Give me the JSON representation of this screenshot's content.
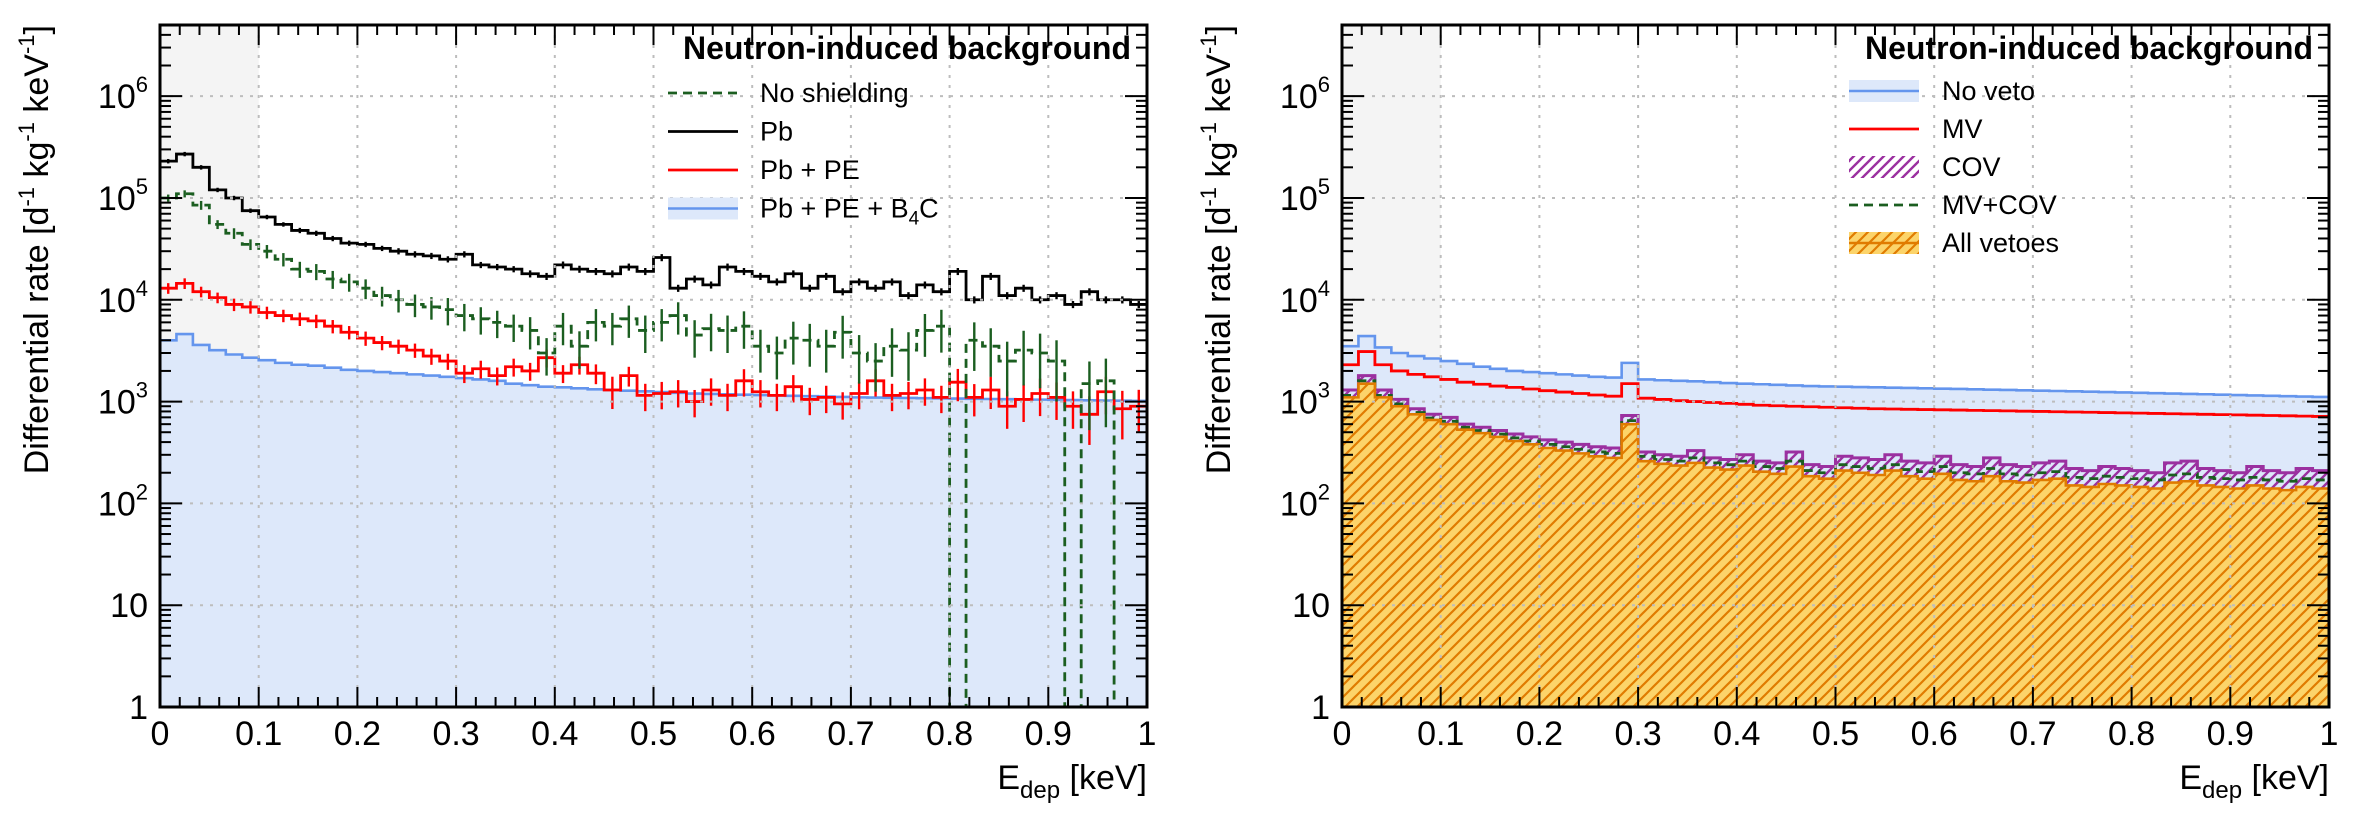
{
  "chart_data": [
    {
      "type": "step-histogram",
      "panel": "left",
      "y_scale": "log",
      "xlim": [
        0,
        1
      ],
      "ylim": [
        1,
        5000000
      ],
      "x_ticks": [
        "0",
        "0.1",
        "0.2",
        "0.3",
        "0.4",
        "0.5",
        "0.6",
        "0.7",
        "0.8",
        "0.9",
        "1"
      ],
      "y_tick_values": [
        1,
        10,
        100,
        1000,
        10000,
        100000,
        1000000
      ],
      "y_tick_labels": [
        {
          "base": "1",
          "exp": ""
        },
        {
          "base": "10",
          "exp": ""
        },
        {
          "base": "10",
          "exp": "2"
        },
        {
          "base": "10",
          "exp": "3"
        },
        {
          "base": "10",
          "exp": "4"
        },
        {
          "base": "10",
          "exp": "5"
        },
        {
          "base": "10",
          "exp": "6"
        }
      ],
      "xlabel": {
        "main": "E",
        "sub": "dep",
        "rest": " [keV]"
      },
      "ylabel": {
        "p1": "Differential rate [d",
        "s1": "-1",
        "p2": " kg",
        "s2": "-1",
        "p3": " keV",
        "s3": "-1",
        "p4": "]"
      },
      "grid": true,
      "shaded_threshold": [
        0,
        0.1
      ],
      "legend_title": "Neutron-induced background",
      "legend_position": "top-right",
      "bins": 60,
      "series": [
        {
          "name": "Pb + PE + B4C",
          "label_main": "Pb + PE + B",
          "label_sub": "4",
          "label_tail": "C",
          "style": "filled",
          "color": "#6495ED",
          "fill": "#DDE8FA",
          "values": [
            4000,
            4600,
            3600,
            3200,
            2900,
            2700,
            2550,
            2400,
            2300,
            2250,
            2150,
            2050,
            2000,
            1950,
            1900,
            1850,
            1800,
            1750,
            1700,
            1650,
            1600,
            1500,
            1450,
            1400,
            1380,
            1350,
            1320,
            1300,
            1280,
            1260,
            1240,
            1220,
            1200,
            1190,
            1180,
            1170,
            1160,
            1150,
            1140,
            1130,
            1120,
            1110,
            1100,
            1095,
            1090,
            1085,
            1080,
            1075,
            1070,
            1065,
            1060,
            1055,
            1050,
            1045,
            1040,
            1035,
            1030,
            1025,
            1020,
            1015
          ]
        },
        {
          "name": "Pb + PE",
          "style": "step-errorbars",
          "color": "#FF0000",
          "values": [
            13000,
            14500,
            12000,
            10500,
            9000,
            8500,
            7500,
            7000,
            6500,
            6200,
            5500,
            4800,
            4200,
            3800,
            3500,
            3200,
            2800,
            2500,
            1900,
            2100,
            1800,
            2200,
            2000,
            2700,
            1900,
            2300,
            1900,
            1300,
            1800,
            1150,
            1200,
            1250,
            1000,
            1300,
            1150,
            1600,
            1250,
            1150,
            1400,
            1050,
            1100,
            950,
            1200,
            1600,
            1150,
            1200,
            1300,
            1100,
            1550,
            1100,
            1300,
            900,
            1050,
            1200,
            1100,
            900,
            750,
            1250,
            850,
            900
          ],
          "errors_rel": [
            0.12,
            0.12,
            0.12,
            0.12,
            0.14,
            0.14,
            0.14,
            0.14,
            0.15,
            0.15,
            0.15,
            0.15,
            0.16,
            0.16,
            0.16,
            0.16,
            0.18,
            0.18,
            0.2,
            0.2,
            0.2,
            0.2,
            0.2,
            0.2,
            0.2,
            0.2,
            0.22,
            0.35,
            0.22,
            0.3,
            0.3,
            0.3,
            0.3,
            0.3,
            0.3,
            0.3,
            0.3,
            0.3,
            0.3,
            0.3,
            0.3,
            0.3,
            0.3,
            0.3,
            0.3,
            0.3,
            0.3,
            0.3,
            0.35,
            0.35,
            0.35,
            0.4,
            0.4,
            0.4,
            0.4,
            0.4,
            0.5,
            0.4,
            0.5,
            0.45
          ]
        },
        {
          "name": "Pb",
          "style": "step",
          "color": "#000000",
          "values": [
            230000,
            270000,
            200000,
            120000,
            100000,
            75000,
            65000,
            55000,
            48000,
            45000,
            40000,
            36000,
            35000,
            32000,
            30000,
            28000,
            27000,
            25000,
            28000,
            22000,
            21000,
            20000,
            18000,
            17000,
            22000,
            20000,
            19000,
            18000,
            21000,
            19000,
            26000,
            13000,
            16000,
            14000,
            21000,
            19000,
            17000,
            15000,
            18000,
            13000,
            17000,
            12000,
            15000,
            13000,
            15000,
            11000,
            14000,
            12000,
            19000,
            10000,
            17000,
            11000,
            13000,
            10000,
            11000,
            9000,
            12000,
            10000,
            10000,
            9000
          ],
          "errors_rel": [
            0.05,
            0.05,
            0.05,
            0.05,
            0.05,
            0.05,
            0.05,
            0.05,
            0.06,
            0.06,
            0.06,
            0.06,
            0.06,
            0.06,
            0.07,
            0.07,
            0.07,
            0.07,
            0.07,
            0.07,
            0.07,
            0.07,
            0.08,
            0.08,
            0.08,
            0.08,
            0.08,
            0.08,
            0.08,
            0.08,
            0.08,
            0.08,
            0.08,
            0.08,
            0.08,
            0.08,
            0.08,
            0.08,
            0.08,
            0.08,
            0.08,
            0.08,
            0.08,
            0.08,
            0.08,
            0.08,
            0.08,
            0.08,
            0.08,
            0.08,
            0.08,
            0.08,
            0.08,
            0.08,
            0.08,
            0.08,
            0.08,
            0.08,
            0.08,
            0.08
          ]
        },
        {
          "name": "No shielding",
          "style": "dashed-step-errorbars",
          "color": "#1B5E20",
          "values": [
            100000,
            110000,
            85000,
            55000,
            45000,
            35000,
            30000,
            25000,
            20000,
            19000,
            16000,
            15000,
            13000,
            11000,
            10000,
            9000,
            8500,
            8000,
            7000,
            6500,
            6000,
            5500,
            5000,
            3000,
            5500,
            3500,
            6000,
            5500,
            6500,
            5000,
            6000,
            7000,
            4500,
            5200,
            5000,
            5500,
            3500,
            3000,
            4200,
            4000,
            3500,
            4800,
            3000,
            2500,
            3500,
            3200,
            5000,
            5500,
            6000,
            4000,
            3500,
            2500,
            3200,
            3000,
            2500,
            2000,
            1500,
            1600,
            2200,
            1800
          ],
          "zero_bins": [
            48,
            55,
            58,
            59
          ],
          "errors_rel": [
            0.08,
            0.08,
            0.1,
            0.1,
            0.12,
            0.12,
            0.15,
            0.15,
            0.18,
            0.18,
            0.2,
            0.2,
            0.22,
            0.22,
            0.25,
            0.25,
            0.25,
            0.3,
            0.3,
            0.3,
            0.3,
            0.3,
            0.35,
            0.4,
            0.35,
            0.4,
            0.35,
            0.35,
            0.35,
            0.4,
            0.35,
            0.35,
            0.4,
            0.4,
            0.4,
            0.4,
            0.45,
            0.45,
            0.45,
            0.45,
            0.45,
            0.45,
            0.5,
            0.5,
            0.5,
            0.5,
            0.45,
            0.45,
            0.45,
            0.5,
            0.5,
            0.55,
            0.55,
            0.55,
            0.6,
            0.6,
            0.65,
            0.65,
            0.6,
            0.6
          ]
        }
      ]
    },
    {
      "type": "step-histogram",
      "panel": "right",
      "y_scale": "log",
      "xlim": [
        0,
        1
      ],
      "ylim": [
        1,
        5000000
      ],
      "x_ticks": [
        "0",
        "0.1",
        "0.2",
        "0.3",
        "0.4",
        "0.5",
        "0.6",
        "0.7",
        "0.8",
        "0.9",
        "1"
      ],
      "y_tick_values": [
        1,
        10,
        100,
        1000,
        10000,
        100000,
        1000000
      ],
      "y_tick_labels": [
        {
          "base": "1",
          "exp": ""
        },
        {
          "base": "10",
          "exp": ""
        },
        {
          "base": "10",
          "exp": "2"
        },
        {
          "base": "10",
          "exp": "3"
        },
        {
          "base": "10",
          "exp": "4"
        },
        {
          "base": "10",
          "exp": "5"
        },
        {
          "base": "10",
          "exp": "6"
        }
      ],
      "xlabel": {
        "main": "E",
        "sub": "dep",
        "rest": " [keV]"
      },
      "ylabel": {
        "p1": "Differential rate [d",
        "s1": "-1",
        "p2": " kg",
        "s2": "-1",
        "p3": " keV",
        "s3": "-1",
        "p4": "]"
      },
      "grid": true,
      "shaded_threshold": [
        0,
        0.1
      ],
      "legend_title": "Neutron-induced background",
      "legend_position": "top-right",
      "bins": 60,
      "series": [
        {
          "name": "No veto",
          "style": "filled",
          "color": "#6495ED",
          "fill": "#DDE8FA",
          "values": [
            3500,
            4400,
            3400,
            3000,
            2800,
            2650,
            2500,
            2350,
            2200,
            2100,
            2000,
            1950,
            1900,
            1850,
            1800,
            1750,
            1720,
            2400,
            1650,
            1620,
            1600,
            1580,
            1550,
            1520,
            1500,
            1480,
            1460,
            1440,
            1420,
            1410,
            1400,
            1390,
            1380,
            1370,
            1360,
            1350,
            1340,
            1330,
            1320,
            1310,
            1300,
            1290,
            1280,
            1270,
            1260,
            1250,
            1240,
            1230,
            1220,
            1210,
            1200,
            1190,
            1180,
            1170,
            1160,
            1150,
            1140,
            1130,
            1120,
            1110
          ]
        },
        {
          "name": "MV",
          "style": "step",
          "color": "#FF0000",
          "values": [
            2300,
            3100,
            2300,
            2000,
            1850,
            1750,
            1650,
            1550,
            1480,
            1420,
            1380,
            1330,
            1280,
            1240,
            1200,
            1160,
            1130,
            1500,
            1080,
            1050,
            1020,
            1000,
            980,
            960,
            940,
            920,
            910,
            900,
            890,
            880,
            870,
            860,
            850,
            845,
            840,
            835,
            830,
            825,
            820,
            815,
            810,
            805,
            800,
            795,
            790,
            785,
            780,
            775,
            770,
            765,
            760,
            755,
            750,
            745,
            740,
            735,
            730,
            725,
            720,
            715
          ]
        },
        {
          "name": "COV",
          "style": "hatched-step",
          "color": "#9B30A0",
          "values": [
            1300,
            1800,
            1300,
            1050,
            850,
            750,
            700,
            600,
            560,
            520,
            480,
            450,
            420,
            400,
            380,
            360,
            350,
            730,
            320,
            300,
            290,
            330,
            280,
            270,
            300,
            260,
            250,
            320,
            240,
            230,
            290,
            280,
            270,
            300,
            260,
            250,
            290,
            240,
            230,
            280,
            240,
            230,
            250,
            260,
            220,
            210,
            230,
            220,
            210,
            200,
            250,
            260,
            220,
            210,
            200,
            230,
            210,
            200,
            220,
            210
          ]
        },
        {
          "name": "MV+COV",
          "style": "dashed-step",
          "color": "#1B5E20",
          "values": [
            1150,
            1600,
            1150,
            950,
            780,
            690,
            640,
            560,
            520,
            480,
            440,
            410,
            380,
            360,
            340,
            320,
            310,
            650,
            290,
            270,
            260,
            280,
            250,
            240,
            260,
            230,
            220,
            260,
            210,
            200,
            240,
            230,
            220,
            240,
            215,
            205,
            230,
            200,
            195,
            220,
            195,
            190,
            200,
            205,
            180,
            175,
            185,
            180,
            175,
            170,
            190,
            195,
            180,
            175,
            170,
            180,
            170,
            165,
            175,
            170
          ]
        },
        {
          "name": "All vetoes",
          "style": "hatched-filled",
          "color": "#E07B00",
          "fill": "#FCD46A",
          "values": [
            1100,
            1500,
            1100,
            900,
            750,
            660,
            600,
            530,
            490,
            450,
            410,
            380,
            350,
            330,
            310,
            290,
            280,
            600,
            260,
            245,
            235,
            250,
            225,
            215,
            235,
            205,
            195,
            230,
            185,
            175,
            210,
            200,
            190,
            210,
            185,
            175,
            195,
            170,
            165,
            185,
            165,
            160,
            170,
            175,
            150,
            145,
            155,
            150,
            145,
            140,
            160,
            165,
            150,
            145,
            140,
            150,
            140,
            135,
            145,
            140
          ]
        }
      ]
    }
  ]
}
